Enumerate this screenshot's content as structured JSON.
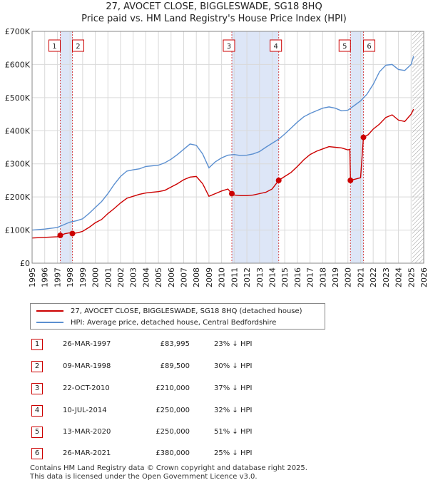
{
  "header": {
    "title": "27, AVOCET CLOSE, BIGGLESWADE, SG18 8HQ",
    "subtitle": "Price paid vs. HM Land Registry's House Price Index (HPI)"
  },
  "colors": {
    "property": "#cc0000",
    "hpi": "#5b8fd0",
    "band": "#dde6f7"
  },
  "chart_data": {
    "type": "line",
    "xlim": [
      1995,
      2026
    ],
    "ylim": [
      0,
      700000
    ],
    "x_ticks": [
      "1995",
      "1996",
      "1997",
      "1998",
      "1999",
      "2000",
      "2001",
      "2002",
      "2003",
      "2004",
      "2005",
      "2006",
      "2007",
      "2008",
      "2009",
      "2010",
      "2011",
      "2012",
      "2013",
      "2014",
      "2015",
      "2016",
      "2017",
      "2018",
      "2019",
      "2020",
      "2021",
      "2022",
      "2023",
      "2024",
      "2025",
      "2026"
    ],
    "y_ticks": [
      {
        "v": 0,
        "label": "£0"
      },
      {
        "v": 100000,
        "label": "£100K"
      },
      {
        "v": 200000,
        "label": "£200K"
      },
      {
        "v": 300000,
        "label": "£300K"
      },
      {
        "v": 400000,
        "label": "£400K"
      },
      {
        "v": 500000,
        "label": "£500K"
      },
      {
        "v": 600000,
        "label": "£600K"
      },
      {
        "v": 700000,
        "label": "£700K"
      }
    ],
    "grid": true,
    "shaded_bands": [
      [
        1997.23,
        1998.19
      ],
      [
        2010.81,
        2014.52
      ],
      [
        2020.2,
        2021.23
      ]
    ],
    "forecast_hatch_from": 2025.1,
    "series": [
      {
        "name": "27, AVOCET CLOSE, BIGGLESWADE, SG18 8HQ (detached house)",
        "x": [
          1995.0,
          1996.0,
          1997.0,
          1997.23,
          1997.6,
          1998.0,
          1998.19,
          1998.6,
          1999.0,
          1999.5,
          2000.0,
          2000.5,
          2001.0,
          2001.5,
          2002.0,
          2002.5,
          2003.0,
          2003.5,
          2004.0,
          2004.5,
          2005.0,
          2005.5,
          2006.0,
          2006.5,
          2007.0,
          2007.5,
          2008.0,
          2008.5,
          2009.0,
          2009.5,
          2010.0,
          2010.5,
          2010.81,
          2011.0,
          2011.5,
          2012.0,
          2012.5,
          2013.0,
          2013.5,
          2014.0,
          2014.52,
          2015.0,
          2015.5,
          2016.0,
          2016.5,
          2017.0,
          2017.5,
          2018.0,
          2018.5,
          2019.0,
          2019.5,
          2020.0,
          2020.15,
          2020.2,
          2020.6,
          2021.0,
          2021.23,
          2021.6,
          2022.0,
          2022.5,
          2023.0,
          2023.5,
          2024.0,
          2024.5,
          2025.0,
          2025.2
        ],
        "y": [
          76000,
          78000,
          80000,
          83995,
          89000,
          92000,
          89500,
          92000,
          96000,
          108000,
          122000,
          132000,
          150000,
          165000,
          182000,
          196000,
          202000,
          208000,
          212000,
          214000,
          216000,
          220000,
          230000,
          240000,
          252000,
          260000,
          262000,
          240000,
          202000,
          210000,
          218000,
          224000,
          210000,
          206000,
          204000,
          204000,
          206000,
          210000,
          214000,
          224000,
          250000,
          262000,
          274000,
          292000,
          312000,
          328000,
          338000,
          345000,
          352000,
          350000,
          348000,
          342000,
          344000,
          250000,
          254000,
          258000,
          380000,
          388000,
          405000,
          420000,
          440000,
          448000,
          432000,
          428000,
          450000,
          465000
        ]
      },
      {
        "name": "HPI: Average price, detached house, Central Bedfordshire",
        "x": [
          1995.0,
          1996.0,
          1997.0,
          1997.5,
          1998.0,
          1998.5,
          1999.0,
          1999.5,
          2000.0,
          2000.5,
          2001.0,
          2001.5,
          2002.0,
          2002.5,
          2003.0,
          2003.5,
          2004.0,
          2004.5,
          2005.0,
          2005.5,
          2006.0,
          2006.5,
          2007.0,
          2007.5,
          2008.0,
          2008.5,
          2009.0,
          2009.5,
          2010.0,
          2010.5,
          2011.0,
          2011.5,
          2012.0,
          2012.5,
          2013.0,
          2013.5,
          2014.0,
          2014.5,
          2015.0,
          2015.5,
          2016.0,
          2016.5,
          2017.0,
          2017.5,
          2018.0,
          2018.5,
          2019.0,
          2019.5,
          2020.0,
          2020.5,
          2021.0,
          2021.5,
          2022.0,
          2022.5,
          2023.0,
          2023.5,
          2024.0,
          2024.5,
          2025.0,
          2025.2
        ],
        "y": [
          100000,
          103000,
          108000,
          116000,
          124000,
          128000,
          134000,
          150000,
          168000,
          186000,
          210000,
          238000,
          262000,
          278000,
          282000,
          285000,
          292000,
          294000,
          296000,
          303000,
          314000,
          328000,
          344000,
          360000,
          356000,
          330000,
          288000,
          306000,
          318000,
          326000,
          328000,
          325000,
          326000,
          330000,
          337000,
          350000,
          362000,
          374000,
          390000,
          408000,
          426000,
          442000,
          452000,
          460000,
          468000,
          472000,
          468000,
          460000,
          462000,
          476000,
          490000,
          510000,
          540000,
          578000,
          598000,
          600000,
          585000,
          582000,
          600000,
          625000
        ]
      }
    ],
    "sales": [
      {
        "num": "1",
        "x": 1997.23,
        "y": 83995
      },
      {
        "num": "2",
        "x": 1998.19,
        "y": 89500
      },
      {
        "num": "3",
        "x": 2010.81,
        "y": 210000
      },
      {
        "num": "4",
        "x": 2014.52,
        "y": 250000
      },
      {
        "num": "5",
        "x": 2020.2,
        "y": 250000
      },
      {
        "num": "6",
        "x": 2021.23,
        "y": 380000
      }
    ]
  },
  "legend": [
    {
      "label": "27, AVOCET CLOSE, BIGGLESWADE, SG18 8HQ (detached house)"
    },
    {
      "label": "HPI: Average price, detached house, Central Bedfordshire"
    }
  ],
  "sales_table": [
    {
      "num": "1",
      "date": "26-MAR-1997",
      "price": "£83,995",
      "hpi": "23% ↓ HPI"
    },
    {
      "num": "2",
      "date": "09-MAR-1998",
      "price": "£89,500",
      "hpi": "30% ↓ HPI"
    },
    {
      "num": "3",
      "date": "22-OCT-2010",
      "price": "£210,000",
      "hpi": "37% ↓ HPI"
    },
    {
      "num": "4",
      "date": "10-JUL-2014",
      "price": "£250,000",
      "hpi": "32% ↓ HPI"
    },
    {
      "num": "5",
      "date": "13-MAR-2020",
      "price": "£250,000",
      "hpi": "51% ↓ HPI"
    },
    {
      "num": "6",
      "date": "26-MAR-2021",
      "price": "£380,000",
      "hpi": "25% ↓ HPI"
    }
  ],
  "footer": {
    "line1": "Contains HM Land Registry data © Crown copyright and database right 2025.",
    "line2": "This data is licensed under the Open Government Licence v3.0."
  }
}
